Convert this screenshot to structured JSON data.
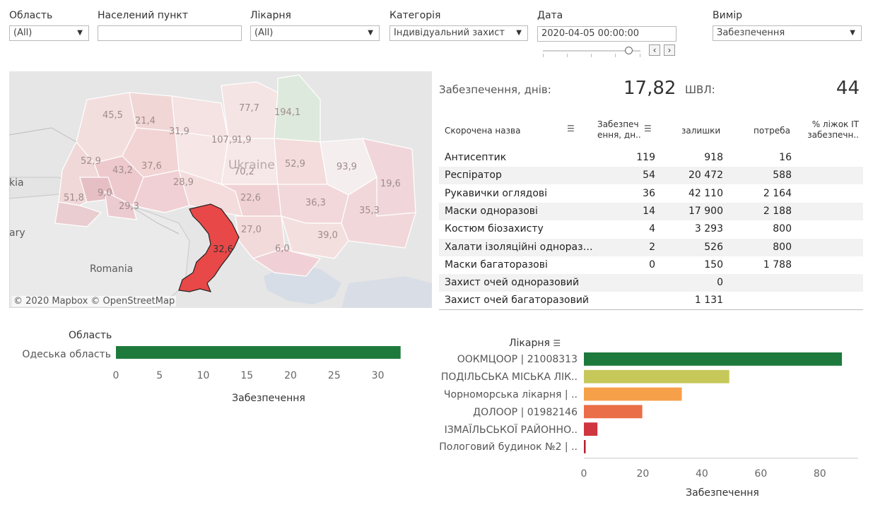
{
  "filters": {
    "oblast": {
      "label": "Область",
      "value": "(All)"
    },
    "settlement": {
      "label": "Населений пункт",
      "value": ""
    },
    "hospital": {
      "label": "Лікарня",
      "value": "(All)"
    },
    "category": {
      "label": "Категорія",
      "value": "Індивідуальний захист"
    },
    "date": {
      "label": "Дата",
      "value": "2020-04-05 00:00:00",
      "slider_position": 0.88
    },
    "measure": {
      "label": "Вимір",
      "value": "Забезпечення"
    }
  },
  "map": {
    "attribution": "© 2020 Mapbox  © OpenStreetMap",
    "places": {
      "country": "Ukraine",
      "romania": "Romania",
      "hungary_partial": "ary",
      "slovakia_partial": "kia"
    },
    "highlight_color": "#e84848",
    "region_values": [
      "45,5",
      "21,4",
      "77,7",
      "194,1",
      "31,9",
      "107,9",
      "1,9",
      "52,9",
      "43,2",
      "37,6",
      "70,2",
      "52,9",
      "93,9",
      "19,6",
      "9,0",
      "28,9",
      "51,8",
      "29,3",
      "22,6",
      "36,3",
      "35,3",
      "27,0",
      "39,0",
      "32,6",
      "6,0"
    ]
  },
  "kpi": {
    "supply_label": "Забезпечення, днів:",
    "supply_value": "17,82",
    "ventilator_label": "ШВЛ:",
    "ventilator_value": "44"
  },
  "table": {
    "headers": {
      "name": "Скорочена назва",
      "supply_l1": "Забезпеч",
      "supply_l2": "ення, дн..",
      "stock": "залишки",
      "need": "потреба",
      "icu_l1": "% ліжок IT",
      "icu_l2": "забезпечн.."
    },
    "rows": [
      {
        "name": "Антисептик",
        "supply": "119",
        "stock": "918",
        "need": "16"
      },
      {
        "name": "Респіратор",
        "supply": "54",
        "stock": "20 472",
        "need": "588"
      },
      {
        "name": "Рукавички оглядові",
        "supply": "36",
        "stock": "42 110",
        "need": "2 164"
      },
      {
        "name": "Маски одноразові",
        "supply": "14",
        "stock": "17 900",
        "need": "2 188"
      },
      {
        "name": "Костюм біозахисту",
        "supply": "4",
        "stock": "3 293",
        "need": "800"
      },
      {
        "name": "Халати ізоляційні одноразові",
        "supply": "2",
        "stock": "526",
        "need": "800"
      },
      {
        "name": "Маски багаторазові",
        "supply": "0",
        "stock": "150",
        "need": "1 788"
      },
      {
        "name": "Захист очей одноразовий",
        "supply": "",
        "stock": "0",
        "need": ""
      },
      {
        "name": "Захист очей багаторазовий",
        "supply": "",
        "stock": "1 131",
        "need": ""
      }
    ]
  },
  "oblast_chart": {
    "header": "Область",
    "xlabel": "Забезпечення",
    "categories": [
      "Одеська область"
    ],
    "values": [
      32.6
    ],
    "xlim": [
      0,
      34
    ],
    "ticks": [
      0,
      5,
      10,
      15,
      20,
      25,
      30
    ],
    "color": "#1e7a3c"
  },
  "hospital_chart": {
    "header": "Лікарня",
    "xlabel": "Забезпечення",
    "categories": [
      "ООКМЦООР | 21008313",
      "ПОДІЛЬСЬКА МІСЬКА ЛІК..",
      "Чорноморська лікарня | ..",
      "ДОЛООР | 01982146",
      "ІЗМАЇЛЬСЬКОЇ РАЙОННО..",
      "Пологовий будинок №2 | .."
    ],
    "values": [
      87.5,
      49.3,
      33.2,
      19.8,
      4.6,
      0.6
    ],
    "colors": [
      "#1e7a3c",
      "#c6c85a",
      "#f7a04a",
      "#ea6e47",
      "#cf3640",
      "#b8202e"
    ],
    "xlim": [
      0,
      93
    ],
    "ticks": [
      0,
      20,
      40,
      60,
      80
    ]
  }
}
